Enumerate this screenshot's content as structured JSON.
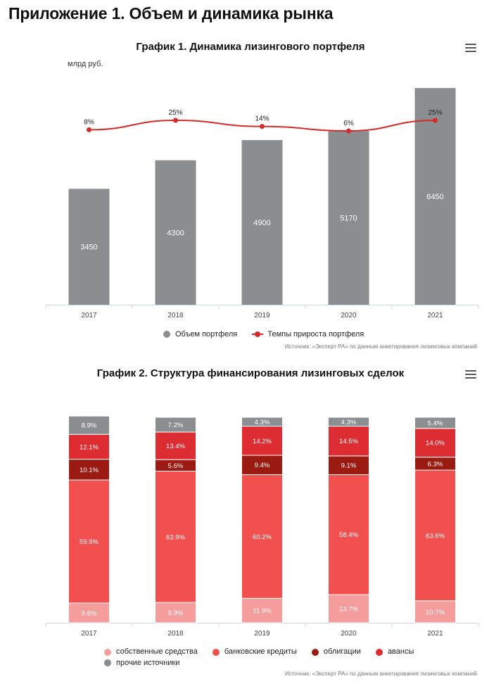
{
  "page": {
    "title": "Приложение 1. Объем и динамика рынка"
  },
  "chart1": {
    "menu_icon": "hamburger-menu-icon"
  },
  "chart2": {
    "menu_icon": "hamburger-menu-icon"
  },
  "chart_data": [
    {
      "type": "bar",
      "title": "График 1. Динамика лизингового портфеля",
      "unit": "млрд руб.",
      "categories": [
        "2017",
        "2018",
        "2019",
        "2020",
        "2021"
      ],
      "series": [
        {
          "name": "Объем портфеля",
          "type": "bar",
          "color": "#8b8e90",
          "values": [
            3450,
            4300,
            4900,
            5170,
            6450
          ],
          "labels": [
            "3450",
            "4300",
            "4900",
            "5170",
            "6450"
          ]
        },
        {
          "name": "Темпы прироста портфеля",
          "type": "line",
          "color": "#d42a2a",
          "values": [
            8,
            25,
            14,
            6,
            25
          ],
          "labels": [
            "8%",
            "25%",
            "14%",
            "6%",
            "25%"
          ]
        }
      ],
      "ylim": [
        0,
        7500
      ],
      "legend": "bottom-center",
      "source": "Источник: «Эксперт РА» по данным анкетирования лизинговых компаний"
    },
    {
      "type": "bar",
      "stacked": true,
      "title": "График 2. Структура финансирования лизинговых сделок",
      "categories": [
        "2017",
        "2018",
        "2019",
        "2020",
        "2021"
      ],
      "series": [
        {
          "name": "собственные средства",
          "color": "#f59d9d",
          "values": [
            9.6,
            9.9,
            11.9,
            13.7,
            10.7
          ],
          "labels": [
            "9.6%",
            "9.9%",
            "11.9%",
            "13.7%",
            "10.7%"
          ]
        },
        {
          "name": "банковские кредиты",
          "color": "#f24f4f",
          "values": [
            59.9,
            63.9,
            60.2,
            58.4,
            63.6
          ],
          "labels": [
            "59.9%",
            "63.9%",
            "60.2%",
            "58.4%",
            "63.6%"
          ]
        },
        {
          "name": "облигации",
          "color": "#9b1a12",
          "values": [
            10.1,
            5.6,
            9.4,
            9.1,
            6.3
          ],
          "labels": [
            "10.1%",
            "5.6%",
            "9.4%",
            "9.1%",
            "6.3%"
          ]
        },
        {
          "name": "авансы",
          "color": "#dd2c32",
          "values": [
            12.1,
            13.4,
            14.2,
            14.5,
            14.0
          ],
          "labels": [
            "12.1%",
            "13.4%",
            "14.2%",
            "14.5%",
            "14.0%"
          ]
        },
        {
          "name": "прочие источники",
          "color": "#8b8e90",
          "values": [
            8.9,
            7.2,
            4.3,
            4.3,
            5.4
          ],
          "labels": [
            "8.9%",
            "7.2%",
            "4.3%",
            "4.3%",
            "5.4%"
          ]
        }
      ],
      "ylim": [
        0,
        100
      ],
      "legend": "bottom-left",
      "source": "Источник: «Эксперт РА» по данным анкетирования лизинговых компаний"
    }
  ]
}
